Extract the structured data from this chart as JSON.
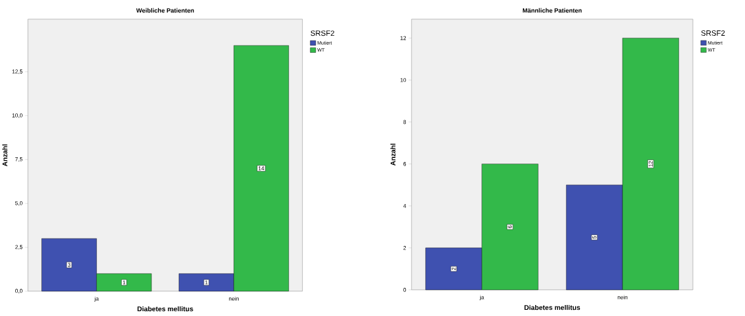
{
  "chart_data": [
    {
      "type": "bar",
      "title": "Weibliche Patienten",
      "xlabel": "Diabetes mellitus",
      "ylabel": "Anzahl",
      "legend_title": "SRSF2",
      "legend": "right",
      "data_labels": true,
      "categories": [
        "ja",
        "nein"
      ],
      "series": [
        {
          "name": "Mutiert",
          "color": "#3f51b0",
          "values": [
            3,
            1
          ]
        },
        {
          "name": "WT",
          "color": "#33b94a",
          "values": [
            1,
            14
          ]
        }
      ],
      "ylim": [
        0,
        15.5
      ],
      "yticks": [
        {
          "value": 0,
          "label": "0,0"
        },
        {
          "value": 2.5,
          "label": "2,5"
        },
        {
          "value": 5,
          "label": "5,0"
        },
        {
          "value": 7.5,
          "label": "7,5"
        },
        {
          "value": 10,
          "label": "10,0"
        },
        {
          "value": 12.5,
          "label": "12,5"
        }
      ]
    },
    {
      "type": "bar",
      "title": "Männliche Patienten",
      "xlabel": "Diabetes mellitus",
      "ylabel": "Anzahl",
      "legend_title": "SRSF2",
      "legend": "right",
      "data_labels": true,
      "categories": [
        "ja",
        "nein"
      ],
      "series": [
        {
          "name": "Mutiert",
          "color": "#3f51b0",
          "values": [
            2,
            5
          ]
        },
        {
          "name": "WT",
          "color": "#33b94a",
          "values": [
            6,
            12
          ]
        }
      ],
      "ylim": [
        0,
        12.9
      ],
      "yticks": [
        0,
        2,
        4,
        6,
        8,
        10,
        12
      ]
    }
  ]
}
